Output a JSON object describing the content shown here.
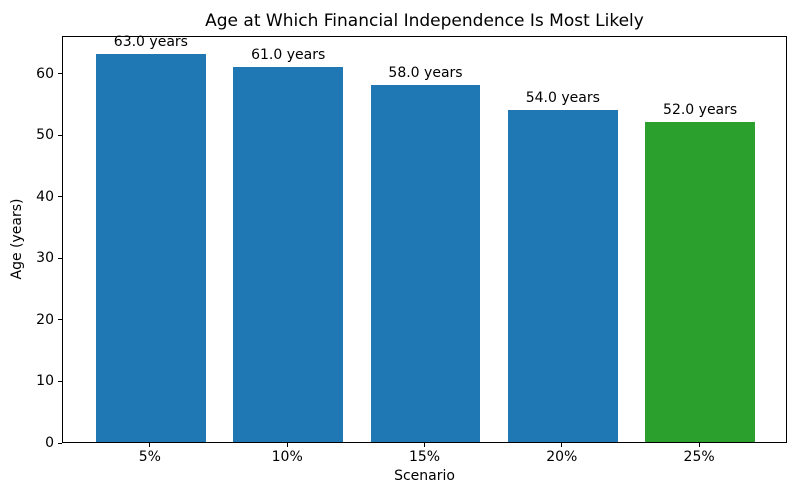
{
  "chart_data": {
    "type": "bar",
    "title": "Age at Which Financial Independence Is Most Likely",
    "xlabel": "Scenario",
    "ylabel": "Age (years)",
    "categories": [
      "5%",
      "10%",
      "15%",
      "20%",
      "25%"
    ],
    "values": [
      63.0,
      61.0,
      58.0,
      54.0,
      52.0
    ],
    "bar_labels": [
      "63.0 years",
      "61.0 years",
      "58.0 years",
      "54.0 years",
      "52.0 years"
    ],
    "bar_colors": [
      "#1f77b4",
      "#1f77b4",
      "#1f77b4",
      "#1f77b4",
      "#2ca02c"
    ],
    "ylim": [
      0,
      66.15
    ],
    "yticks": [
      0,
      10,
      20,
      30,
      40,
      50,
      60
    ],
    "bar_width_fraction": 0.8,
    "grid": false,
    "legend_position": "none",
    "axis_color": "#000000",
    "text_color": "#000000",
    "background_color": "#ffffff"
  }
}
